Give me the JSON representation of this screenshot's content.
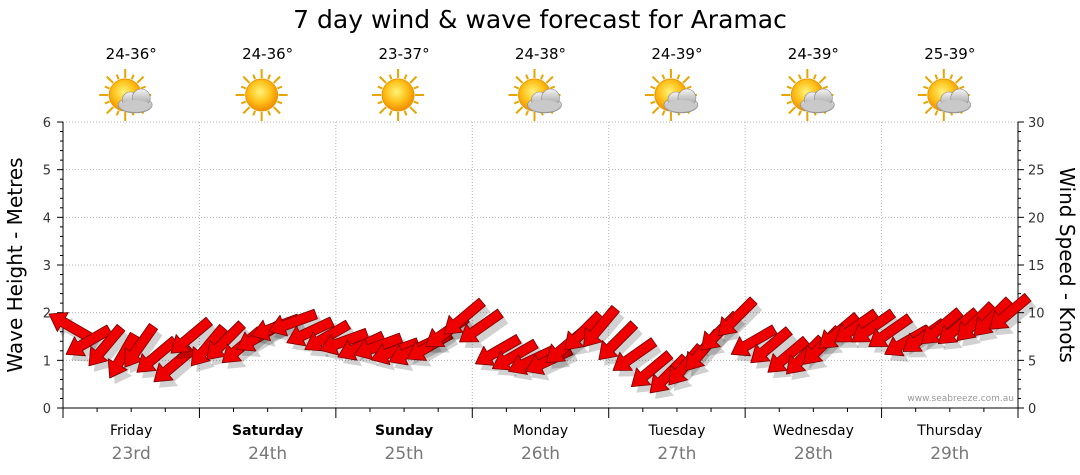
{
  "chart_data": {
    "type": "line",
    "title": "7 day wind & wave forecast for Aramac",
    "ylabel_left": "Wave Height - Metres",
    "ylabel_right": "Wind Speed - Knots",
    "ylim_left": [
      0,
      6
    ],
    "ylim_right": [
      0,
      30
    ],
    "left_ticks": [
      "0",
      "1",
      "2",
      "3",
      "4",
      "5",
      "6"
    ],
    "right_ticks": [
      "0",
      "5",
      "10",
      "15",
      "20",
      "25",
      "30"
    ],
    "grid": true,
    "watermark": "www.seabreeze.com.au",
    "days": [
      {
        "name": "Friday",
        "date": "23rd",
        "temp": "24-36°",
        "icon": "sun-cloud-icon",
        "bold": false
      },
      {
        "name": "Saturday",
        "date": "24th",
        "temp": "24-36°",
        "icon": "sun-icon",
        "bold": true
      },
      {
        "name": "Sunday",
        "date": "25th",
        "temp": "23-37°",
        "icon": "sun-icon",
        "bold": true
      },
      {
        "name": "Monday",
        "date": "26th",
        "temp": "24-38°",
        "icon": "sun-cloud-icon",
        "bold": false
      },
      {
        "name": "Tuesday",
        "date": "27th",
        "temp": "24-39°",
        "icon": "sun-cloud-icon",
        "bold": false
      },
      {
        "name": "Wednesday",
        "date": "28th",
        "temp": "24-39°",
        "icon": "sun-cloud-icon",
        "bold": false
      },
      {
        "name": "Thursday",
        "date": "29th",
        "temp": "25-39°",
        "icon": "sun-cloud-icon",
        "bold": false
      }
    ],
    "wind_series": {
      "name": "Wind",
      "color": "#ee0000",
      "points_per_day": 8,
      "speed_knots": [
        8.5,
        7,
        6.5,
        5.5,
        6.5,
        5.5,
        4.5,
        7.5,
        6.5,
        7,
        6.5,
        7.5,
        8.5,
        9,
        8,
        7.5,
        7,
        6.5,
        6.5,
        6,
        6,
        6.5,
        8,
        9.5,
        8.5,
        6,
        5.5,
        5,
        5,
        6.5,
        8,
        8.5,
        7,
        5.5,
        4,
        3.5,
        4.5,
        6,
        8,
        9.5,
        7,
        6.5,
        5.5,
        5.5,
        6.5,
        8,
        8.5,
        8.5,
        8,
        7,
        7.5,
        8.5,
        8.5,
        9,
        9.5,
        10
      ],
      "direction_deg": [
        300,
        240,
        220,
        210,
        215,
        230,
        230,
        230,
        220,
        225,
        230,
        240,
        250,
        250,
        245,
        240,
        250,
        245,
        250,
        250,
        245,
        240,
        235,
        230,
        235,
        240,
        240,
        245,
        245,
        230,
        225,
        220,
        225,
        235,
        230,
        225,
        220,
        220,
        225,
        225,
        240,
        230,
        230,
        225,
        225,
        230,
        235,
        235,
        235,
        240,
        235,
        230,
        230,
        225,
        225,
        230
      ]
    }
  }
}
